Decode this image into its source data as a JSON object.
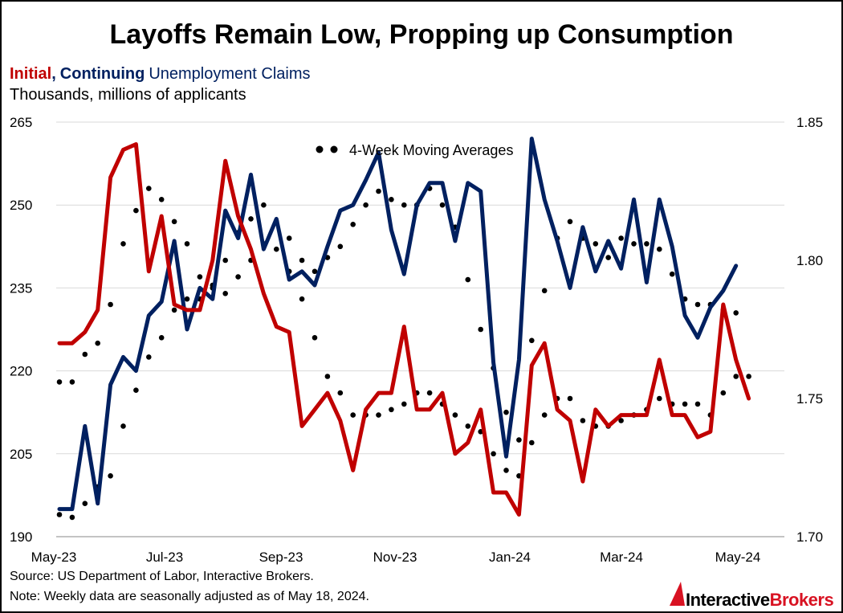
{
  "chart_data": {
    "type": "line",
    "title": "Layoffs Remain Low, Propping up Consumption",
    "subtitle": {
      "initial": "Initial",
      "comma": ",",
      "continuing": "Continuing",
      "rest": "Unemployment Claims",
      "units": "Thousands, millions of applicants"
    },
    "x_tick_labels": [
      "May-23",
      "Jul-23",
      "Sep-23",
      "Nov-23",
      "Jan-24",
      "Mar-24",
      "May-24"
    ],
    "left_axis": {
      "ylim": [
        190,
        265
      ],
      "ticks": [
        "190",
        "205",
        "220",
        "235",
        "250",
        "265"
      ]
    },
    "right_axis": {
      "ylim": [
        1.7,
        1.85
      ],
      "ticks": [
        "1.70",
        "1.75",
        "1.80",
        "1.85"
      ]
    },
    "legend": "4-Week Moving Averages",
    "colors": {
      "initial": "#c00000",
      "continuing": "#002060",
      "average": "#000000"
    },
    "series": [
      {
        "name": "Initial",
        "axis": "left",
        "values": [
          225,
          225,
          227,
          231,
          255,
          260,
          261,
          238,
          248,
          232,
          231,
          231,
          240,
          258,
          248,
          242,
          234,
          228,
          227,
          210,
          213,
          216,
          211,
          202,
          213,
          216,
          216,
          228,
          213,
          213,
          216,
          205,
          207,
          213,
          198,
          198,
          194,
          221,
          225,
          213,
          211,
          200,
          213,
          210,
          212,
          212,
          212,
          222,
          212,
          212,
          208,
          209,
          232,
          222,
          215
        ]
      },
      {
        "name": "Continuing",
        "axis": "right",
        "values": [
          1.71,
          1.71,
          1.74,
          1.712,
          1.755,
          1.765,
          1.76,
          1.78,
          1.785,
          1.807,
          1.775,
          1.79,
          1.786,
          1.818,
          1.808,
          1.831,
          1.804,
          1.815,
          1.793,
          1.796,
          1.791,
          1.805,
          1.818,
          1.82,
          1.829,
          1.839,
          1.811,
          1.795,
          1.82,
          1.828,
          1.828,
          1.807,
          1.828,
          1.825,
          1.763,
          1.729,
          1.764,
          1.844,
          1.822,
          1.807,
          1.79,
          1.812,
          1.796,
          1.807,
          1.797,
          1.822,
          1.792,
          1.822,
          1.805,
          1.78,
          1.772,
          1.783,
          1.789,
          1.798
        ]
      },
      {
        "name": "Initial 4-Week Moving Average",
        "axis": "left",
        "values": [
          218,
          218,
          223,
          225,
          232,
          243,
          249,
          253,
          251,
          247,
          243,
          237,
          235,
          234,
          237,
          240,
          243,
          242,
          238,
          233,
          226,
          219,
          216,
          212,
          212,
          212,
          213,
          214,
          216,
          216,
          214,
          212,
          210,
          209,
          205,
          202,
          201,
          207,
          212,
          215,
          215,
          211,
          210,
          210,
          211,
          212,
          213,
          215,
          214,
          214,
          214,
          212,
          216,
          219,
          219
        ]
      },
      {
        "name": "Continuing 4-Week Moving Average",
        "axis": "right",
        "values": [
          1.708,
          1.707,
          1.712,
          1.718,
          1.722,
          1.74,
          1.753,
          1.765,
          1.772,
          1.782,
          1.786,
          1.786,
          1.791,
          1.8,
          1.81,
          1.815,
          1.82,
          1.814,
          1.808,
          1.8,
          1.796,
          1.801,
          1.805,
          1.813,
          1.82,
          1.825,
          1.822,
          1.82,
          1.82,
          1.826,
          1.82,
          1.812,
          1.793,
          1.775,
          1.761,
          1.745,
          1.735,
          1.771,
          1.789,
          1.808,
          1.814,
          1.808,
          1.806,
          1.801,
          1.808,
          1.806,
          1.806,
          1.804,
          1.795,
          1.786,
          1.784,
          1.784,
          1.782,
          1.781
        ]
      }
    ],
    "source": "Source: US Department of Labor, Interactive Brokers.",
    "note": "Note: Weekly data are seasonally adjusted as of May 18, 2024.",
    "logo": {
      "part1": "Interactive",
      "part2": "Brokers"
    }
  }
}
